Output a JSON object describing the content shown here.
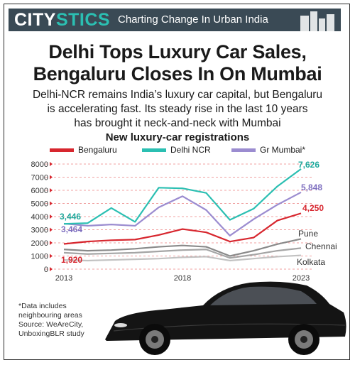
{
  "header": {
    "brand_a": "CITY",
    "brand_b": "STICS",
    "tagline": "Charting Change In Urban India"
  },
  "headline": {
    "line1": "Delhi Tops Luxury Car Sales,",
    "line2": "Bengaluru Closes In On Mumbai"
  },
  "subtitle": {
    "line1": "Delhi-NCR remains India’s luxury car capital, but Bengaluru",
    "line2": "is accelerating fast. Its steady rise in the last 10 years",
    "line3": "has brought it neck-and-neck with Mumbai"
  },
  "footnote": {
    "line1": "*Data includes",
    "line2": "neighbouring areas",
    "line3": "Source: WeAreCity,",
    "line4": "UnboxingBLR study"
  },
  "colors": {
    "banner": "#3a4a55",
    "accent": "#2bbfb2",
    "bengaluru": "#d7262e",
    "delhi": "#2bbfb2",
    "mumbai": "#9b8cd0",
    "minor": "#9a9a9a",
    "grid": "#f0a0a0"
  },
  "chart_data": {
    "type": "line",
    "title": "New luxury-car registrations",
    "x": [
      2013,
      2014,
      2015,
      2016,
      2017,
      2018,
      2019,
      2020,
      2021,
      2022,
      2023
    ],
    "xticks": [
      "2013",
      "2018",
      "2023"
    ],
    "ylim": [
      0,
      8000
    ],
    "yticks": [
      "0",
      "1000",
      "2000",
      "3000",
      "4000",
      "5000",
      "6000",
      "7000",
      "8000"
    ],
    "grid": true,
    "legend_position": "top",
    "series": [
      {
        "name": "Bengaluru",
        "color": "#d7262e",
        "values": [
          1920,
          2100,
          2200,
          2250,
          2600,
          3050,
          2800,
          2100,
          2400,
          3700,
          4250
        ],
        "first_label": "1,920",
        "last_label": "4,250"
      },
      {
        "name": "Delhi NCR",
        "color": "#2bbfb2",
        "values": [
          3446,
          3500,
          4650,
          3600,
          6200,
          6150,
          5800,
          3750,
          4600,
          6300,
          7626
        ],
        "first_label": "3,446",
        "last_label": "7,626"
      },
      {
        "name": "Gr Mumbai*",
        "color": "#9b8cd0",
        "values": [
          3464,
          3300,
          3400,
          3300,
          4700,
          5550,
          4500,
          2550,
          3800,
          4900,
          5848
        ],
        "first_label": "3,464",
        "last_label": "5,848"
      },
      {
        "name": "Pune",
        "color": "#8a8a8a",
        "values": [
          1500,
          1400,
          1450,
          1550,
          1700,
          1800,
          1700,
          1000,
          1400,
          1900,
          2300
        ]
      },
      {
        "name": "Chennai",
        "color": "#a5a5a5",
        "values": [
          1250,
          1150,
          1200,
          1250,
          1350,
          1450,
          1500,
          850,
          1100,
          1400,
          1600
        ]
      },
      {
        "name": "Kolkata",
        "color": "#c2c2c2",
        "values": [
          700,
          650,
          700,
          750,
          800,
          900,
          950,
          650,
          800,
          950,
          1050
        ]
      }
    ]
  }
}
